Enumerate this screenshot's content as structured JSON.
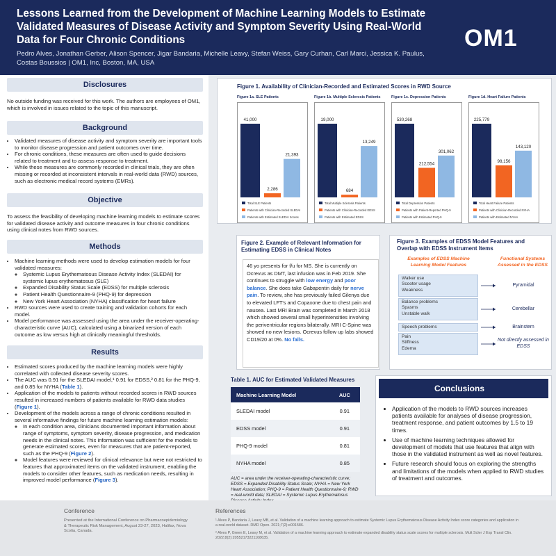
{
  "header": {
    "title": "Lessons Learned from the Development of Machine Learning Models to Estimate Validated Measures of Disease Activity and Symptom Severity Using Real-World Data for Four Chronic Conditions",
    "authors": "Pedro Alves, Jonathan Gerber, Alison Spencer, Jigar Bandaria, Michelle Leavy, Stefan Weiss, Gary Curhan, Carl Marci, Jessica K. Paulus, Costas Boussios  |  OM1, Inc, Boston, MA, USA",
    "logo": "OM1"
  },
  "disclosures": {
    "heading": "Disclosures",
    "text": "No outside funding was received for this work. The authors are employees of OM1, which is involved in issues related to the topic of this manuscript."
  },
  "background": {
    "heading": "Background",
    "bullets": [
      "Validated measures of disease activity and symptom severity are important tools to monitor disease progression and patient outcomes over time.",
      "For chronic conditions, these measures are often used to guide decisions related to treatment and to assess response to treatment.",
      "While these measures are commonly recorded in clinical trials, they are often missing or recorded at inconsistent intervals in real-world data (RWD) sources, such as electronic medical record systems (EMRs)."
    ]
  },
  "objective": {
    "heading": "Objective",
    "text": "To assess the feasibility of developing machine learning models to estimate scores for validated disease activity and outcome measures in four chronic conditions using clinical notes from RWD sources."
  },
  "methods": {
    "heading": "Methods",
    "bullets": [
      {
        "text": "Machine learning methods were used to develop estimation models for four validated measures:",
        "sub": [
          "Systemic Lupus Erythematosus Disease Activity Index (SLEDAI) for systemic lupus erythematosus (SLE)",
          "Expanded Disability Status Scale (EDSS) for multiple sclerosis",
          "Patient Health Questionnaire-9 (PHQ-9) for depression",
          "New York Heart Association (NYHA) classification for heart failure"
        ]
      },
      {
        "text": "RWD sources were used to create training and validation cohorts for each model."
      },
      {
        "text": "Model performance was assessed using the area under the receiver-operating-characteristic curve (AUC), calculated using a binarized version of each outcome as low versus high at clinically meaningful thresholds."
      }
    ]
  },
  "results": {
    "heading": "Results",
    "bullets": [
      {
        "text": "Estimated scores produced by the machine learning models were highly correlated with collected disease severity scores."
      },
      {
        "text": [
          "The AUC was 0.91 for the SLEDAI model,¹ 0.91 for EDSS,² 0.81 for the PHQ-9, and 0.85 for NYHA (",
          "Table 1",
          ")."
        ]
      },
      {
        "text": [
          "Application of the models to patients without recorded scores in RWD sources resulted in increased numbers of patients available for RWD data studies (",
          "Figure 1",
          ")."
        ]
      },
      {
        "text": "Development of the models across a range of chronic conditions resulted in several informative findings for future machine learning estimation models:",
        "sub": [
          [
            "In each condition area, clinicians documented important information about range of symptoms, symptom severity, disease progression, and medication needs in the clinical notes. This information was sufficient for the models to generate estimated scores, even for measures that are patient-reported, such as the PHQ-9 (",
            "Figure 2",
            ")."
          ],
          [
            "Model features were reviewed for clinical relevance but were not restricted to features that approximated items on the validated instrument, enabling the models to consider other features, such as medication needs, resulting in improved model performance (",
            "Figure 3",
            ")."
          ]
        ]
      }
    ]
  },
  "figure1": {
    "title": "Figure 1. Availability of Clinician-Recorded and Estimated Scores in RWD Source",
    "colors": [
      "#1b2a5c",
      "#f26522",
      "#8fb8e3"
    ],
    "panels": [
      {
        "title": "Figure 1a. SLE Patients",
        "values": [
          41000,
          2286,
          21393
        ],
        "value_labels": [
          "41,000",
          "2,286",
          "21,393"
        ],
        "legend": [
          "Total SLE Patients",
          "Patients with Clinician-Recorded SLEDAI",
          "Patients with Estimated SLEDAI Scores"
        ]
      },
      {
        "title": "Figure 1b. Multiple Sclerosis Patients",
        "values": [
          19000,
          684,
          13249
        ],
        "value_labels": [
          "19,000",
          "684",
          "13,249"
        ],
        "legend": [
          "Total Multiple Sclerosis Patients",
          "Patients with Clinician-Recorded EDSS",
          "Patients with Estimated EDSS"
        ]
      },
      {
        "title": "Figure 1c. Depression Patients",
        "values": [
          530268,
          212554,
          301062
        ],
        "value_labels": [
          "530,268",
          "212,554",
          "301,062"
        ],
        "legend": [
          "Total Depression Patients",
          "Patients with Patient-Reported PHQ-9",
          "Patients with Estimated PHQ-9"
        ]
      },
      {
        "title": "Figure 1d. Heart Failure Patients",
        "values": [
          225779,
          98156,
          143120
        ],
        "value_labels": [
          "225,779",
          "98,156",
          "143,120"
        ],
        "legend": [
          "Total Heart Failure Patients",
          "Patients with Clinician-Recorded NYHA",
          "Patients with Estimated NYHA"
        ]
      }
    ]
  },
  "figure2": {
    "title": "Figure 2. Example of Relevant Information for Estimating EDSS in Clinical Notes",
    "text": [
      "46 yo presents for f/u for MS. She is currently on Ocrevus as DMT, last infusion was in Feb 2019. She continues to struggle with ",
      "low energy",
      " and ",
      "poor balance",
      ". She does take Gabapentin daily for ",
      "nerve pain",
      ". To review, she has previously failed Gilenya due to elevated LFT's and Copaxone due to chest pain and nausea. Last MRI Brain was completed in March 2018 which showed several small hyperintensities involving the periventricular regions bilaterally. MRI C-Spine was showed no new lesions. Ocrevus follow up labs showed CD19/20 at 0%. ",
      "No falls."
    ]
  },
  "figure3": {
    "title": "Figure 3. Examples of EDSS Model Features and Overlap with EDSS Instrument Items",
    "left_heading": "Examples of EDSS Machine Learning Model Features",
    "right_heading": "Functional Systems Assessed in the EDSS",
    "groups": [
      {
        "features": [
          "Walker use",
          "Scooter usage",
          "Weakness"
        ],
        "system": "Pyramidal"
      },
      {
        "features": [
          "Balance problems",
          "Spasms",
          "Unstable walk"
        ],
        "system": "Cerebellar"
      },
      {
        "features": [
          "Speech problems"
        ],
        "system": "Brainstem"
      },
      {
        "features": [
          "Pain",
          "Stiffness",
          "Edema"
        ],
        "system": "Not directly assessed in EDSS"
      }
    ]
  },
  "table1": {
    "title": "Table 1. AUC for Estimated Validated Measures",
    "columns": [
      "Machine Learning Model",
      "AUC"
    ],
    "rows": [
      [
        "SLEDAI model",
        "0.91"
      ],
      [
        "EDSS model",
        "0.91"
      ],
      [
        "PHQ-9 model",
        "0.81"
      ],
      [
        "NYHA model",
        "0.85"
      ]
    ],
    "footnote": "AUC = area under the receiver-operating-characteristic curve; EDSS = Expanded Disability Status Scale; NYHA = New York Heart Association; PHQ-9 = Patient Health Questionnaire-9; RWD = real-world data; SLEDAI = Systemic Lupus Erythematosus Disease Activity Index"
  },
  "conclusions": {
    "heading": "Conclusions",
    "bullets": [
      "Application of the models to RWD sources increases patients available for analyses of disease progression, treatment response, and patient outcomes by 1.5 to 19 times.",
      "Use of machine learning techniques allowed for development of models that use features that align with those in the validated instrument as well as novel features.",
      "Future research should focus on exploring the strengths and limitations of the models when applied to RWD studies of treatment and outcomes."
    ]
  },
  "footer": {
    "conference_heading": "Conference",
    "conference": "Presented at the International Conference on Pharmacoepidemiology & Therapeutic Risk Management, August 23-27, 2023, Halifax, Nova Scotia, Canada.",
    "references_heading": "References",
    "references": [
      "¹ Alves P, Bandaria J, Leavy MB, et al. Validation of a machine learning approach to estimate Systemic Lupus Erythematosus Disease Activity Index score categories and application in a real-world dataset. RMD Open. 2021;7(2):e001586.",
      "² Alves P, Green E, Leavy M, et al. Validation of a machine learning approach to estimate expanded disability status scale scores for multiple sclerosis. Mult Scler J Exp Transl Clin. 2022;8(2):20552173221108635."
    ]
  }
}
